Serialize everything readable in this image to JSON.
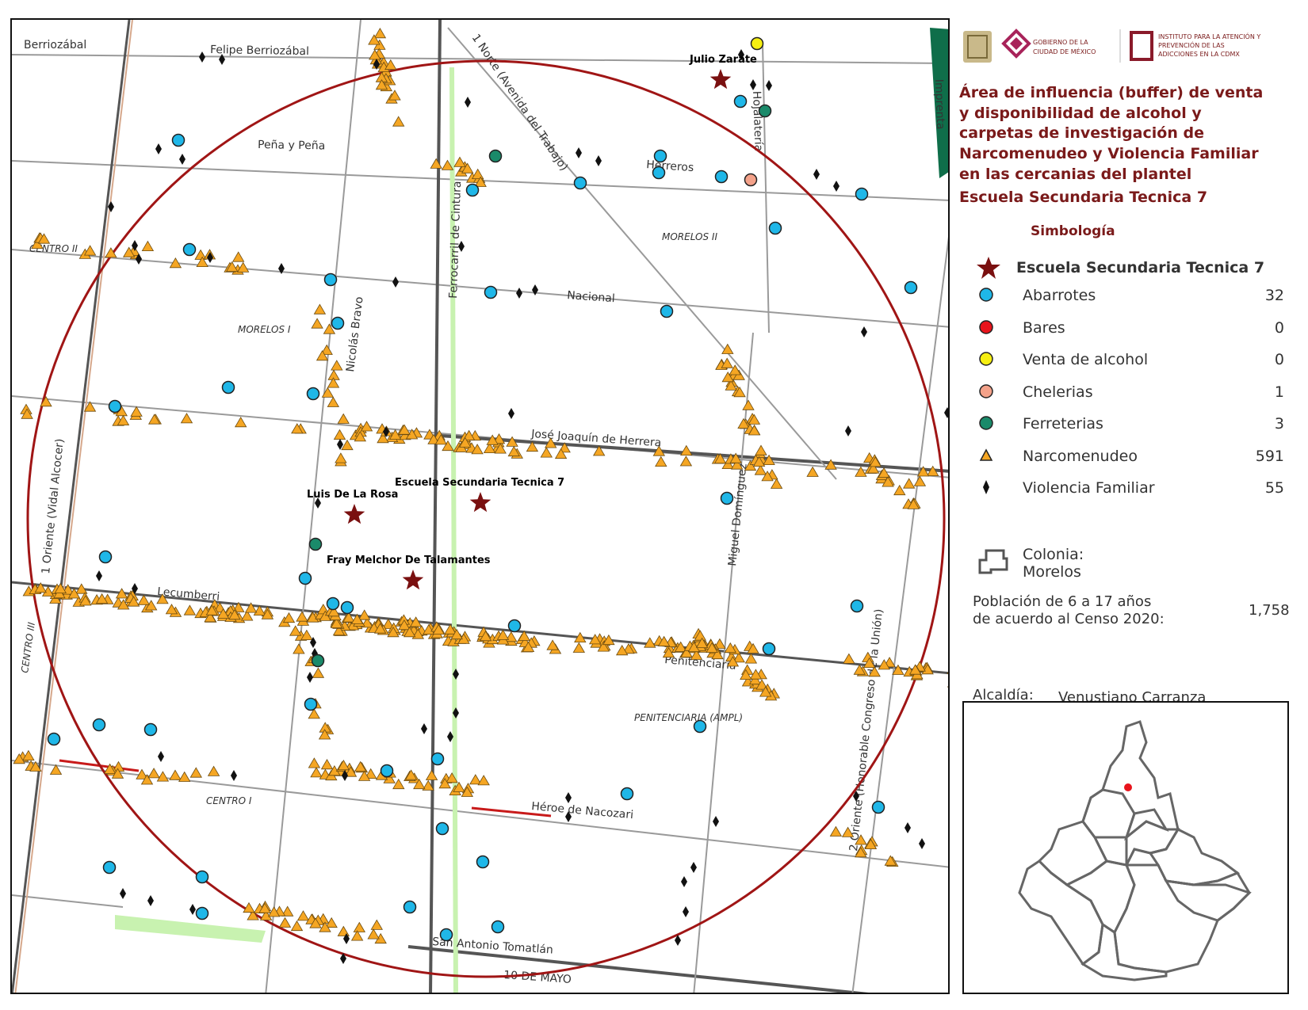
{
  "map": {
    "streets": [
      "Berriozábal",
      "Felipe Berriozábal",
      "Peña y Peña",
      "Herreros",
      "Nacional",
      "José Joaquín de Herrera",
      "Lecumberri",
      "Penitenciaría",
      "Héroe de Nacozari",
      "San Antonio Tomatlán",
      "1 Norte (Avenida del Trabajo)",
      "Ferrocarril de Cintura",
      "Nicolás Bravo",
      "Miguel Domínguez",
      "1 Oriente (Vidal Alcocer)",
      "2 Oriente (Honorable Congreso de la Unión)",
      "Hojalatería",
      "Imprenta",
      "10 DE MAYO"
    ],
    "colonias": [
      "CENTRO II",
      "MORELOS I",
      "MORELOS II",
      "CENTRO III",
      "CENTRO I",
      "PENITENCIARIA (AMPL)"
    ],
    "schools": [
      "Julio Zarate",
      "Luis De La Rosa",
      "Escuela Secundaria Tecnica 7",
      "Fray Melchor De Talamantes"
    ]
  },
  "header": {
    "logo_gov_line1": "GOBIERNO DE LA",
    "logo_gov_line2": "CIUDAD DE MÉXICO",
    "logo_iapa_line1": "INSTITUTO PARA LA ATENCIÓN Y",
    "logo_iapa_line2": "PREVENCIÓN DE LAS",
    "logo_iapa_line3": "ADICCIONES EN LA CDMX"
  },
  "title": {
    "line1": "Área de influencia (buffer) de venta",
    "line2": "y disponibilidad de alcohol y",
    "line3": " carpetas de investigación de",
    "line4": "Narcomenudeo y Violencia Familiar",
    "line5": "en las cercanias del plantel",
    "line6": "Escuela Secundaria Tecnica 7"
  },
  "legend": {
    "heading": "Simbología",
    "school": "Escuela Secundaria Tecnica 7",
    "items": [
      {
        "label": "Abarrotes",
        "count": "32",
        "color": "#1fb7e8",
        "shape": "circle"
      },
      {
        "label": "Bares",
        "count": "0",
        "color": "#e8141c",
        "shape": "circle"
      },
      {
        "label": "Venta de alcohol",
        "count": "0",
        "color": "#f6ef12",
        "shape": "circle"
      },
      {
        "label": "Chelerias",
        "count": "1",
        "color": "#f4a28a",
        "shape": "circle"
      },
      {
        "label": "Ferreterias",
        "count": "3",
        "color": "#1a8a6a",
        "shape": "circle"
      },
      {
        "label": "Narcomenudeo",
        "count": "591",
        "color": "#f5a623",
        "shape": "triangle"
      },
      {
        "label": "Violencia Familiar",
        "count": "55",
        "color": "#111111",
        "shape": "diamond"
      }
    ],
    "colonia_label1": "Colonia:",
    "colonia_label2": "Morelos"
  },
  "stats": {
    "population_line1": "Población de 6 a 17 años",
    "population_line2": "de acuerdo al Censo 2020:",
    "population_value": "1,758",
    "alcaldia_label": "Alcaldía:",
    "alcaldia_value": "Venustiano Carranza"
  },
  "colors": {
    "buffer": "#a01515",
    "title": "#7a1a1a",
    "school_star": "#7a1010",
    "road_major": "#555555",
    "road_minor": "#9a9a9a"
  }
}
